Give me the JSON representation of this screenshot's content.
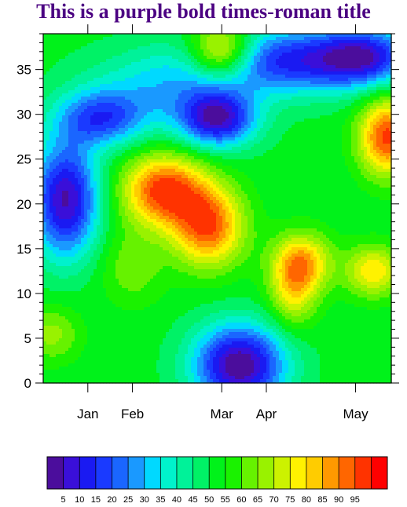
{
  "chart_data": {
    "type": "heatmap",
    "title": "This is a purple bold times-roman title",
    "title_color": "#4B0082",
    "xlabel": "",
    "ylabel": "",
    "xlim": [
      0,
      39
    ],
    "ylim": [
      0,
      39
    ],
    "y_ticks": [
      {
        "value": 0,
        "label": "0"
      },
      {
        "value": 5,
        "label": "5"
      },
      {
        "value": 10,
        "label": "10"
      },
      {
        "value": 15,
        "label": "15"
      },
      {
        "value": 20,
        "label": "20"
      },
      {
        "value": 25,
        "label": "25"
      },
      {
        "value": 30,
        "label": "30"
      },
      {
        "value": 35,
        "label": "35"
      }
    ],
    "x_ticks": [
      {
        "value": 5,
        "label": "Jan"
      },
      {
        "value": 10,
        "label": "Feb"
      },
      {
        "value": 20,
        "label": "Mar"
      },
      {
        "value": 25,
        "label": "Apr"
      },
      {
        "value": 35,
        "label": "May"
      }
    ],
    "levels": [
      5,
      10,
      15,
      20,
      25,
      30,
      35,
      40,
      45,
      50,
      55,
      60,
      65,
      70,
      75,
      80,
      85,
      90,
      95
    ],
    "colormap": [
      "#4B0D9C",
      "#3A0FD9",
      "#1A1AF2",
      "#1A3AFF",
      "#1A66FF",
      "#1A99FF",
      "#00D9FF",
      "#00F2CC",
      "#00F299",
      "#00F266",
      "#00F21A",
      "#1AF200",
      "#66F200",
      "#99F200",
      "#CCF200",
      "#FFF200",
      "#FFCC00",
      "#FF9900",
      "#FF6600",
      "#FF3300",
      "#FF0000"
    ],
    "field": {
      "background": 52,
      "features": [
        {
          "x": 2.5,
          "y": 20.5,
          "amplitude": -48,
          "sx": 2.6,
          "sy": 4.5
        },
        {
          "x": 6.5,
          "y": 29.5,
          "amplitude": -32,
          "sx": 3.5,
          "sy": 2.2
        },
        {
          "x": 19.5,
          "y": 29.5,
          "amplitude": -45,
          "sx": 3.0,
          "sy": 2.2
        },
        {
          "x": 28.0,
          "y": 36.0,
          "amplitude": -38,
          "sx": 7.0,
          "sy": 2.6
        },
        {
          "x": 36.0,
          "y": 36.5,
          "amplitude": -32,
          "sx": 3.5,
          "sy": 2.2
        },
        {
          "x": 13.5,
          "y": 33.0,
          "amplitude": -18,
          "sx": 6.0,
          "sy": 3.0
        },
        {
          "x": 22.0,
          "y": 2.0,
          "amplitude": -52,
          "sx": 3.6,
          "sy": 3.2
        },
        {
          "x": 20.0,
          "y": 37.0,
          "amplitude": 38,
          "sx": 2.5,
          "sy": 2.2
        },
        {
          "x": 13.5,
          "y": 21.5,
          "amplitude": 46,
          "sx": 3.2,
          "sy": 2.8
        },
        {
          "x": 18.5,
          "y": 17.5,
          "amplitude": 42,
          "sx": 2.8,
          "sy": 3.2
        },
        {
          "x": 38.5,
          "y": 27.5,
          "amplitude": 45,
          "sx": 2.2,
          "sy": 3.0
        },
        {
          "x": 29.0,
          "y": 13.5,
          "amplitude": 32,
          "sx": 2.3,
          "sy": 2.3
        },
        {
          "x": 28.0,
          "y": 10.0,
          "amplitude": 22,
          "sx": 1.9,
          "sy": 2.8
        },
        {
          "x": 37.0,
          "y": 12.5,
          "amplitude": 28,
          "sx": 2.2,
          "sy": 2.0
        },
        {
          "x": 1.0,
          "y": 5.5,
          "amplitude": 15,
          "sx": 2.2,
          "sy": 2.2
        },
        {
          "x": 10.0,
          "y": 13.0,
          "amplitude": 12,
          "sx": 2.5,
          "sy": 3.0
        }
      ]
    },
    "colorbar": {
      "orientation": "horizontal",
      "position": "bottom"
    },
    "grid": false,
    "legend": "none"
  }
}
